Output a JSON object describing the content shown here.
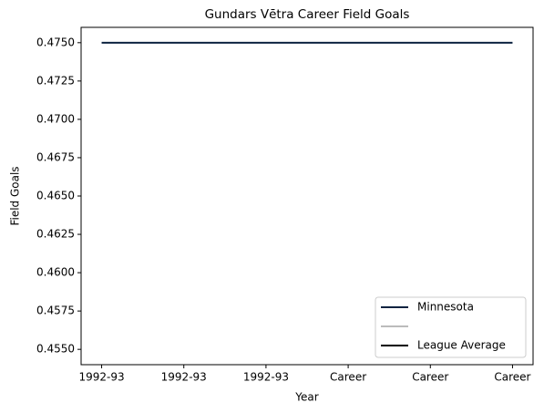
{
  "chart_data": {
    "type": "line",
    "title": "Gundars Vētra Career Field Goals",
    "x_label": "Year",
    "y_label": "Field Goals",
    "categories": [
      "1992-93",
      "1992-93",
      "1992-93",
      "Career",
      "Career",
      "Career"
    ],
    "series": [
      {
        "name": "Minnesota",
        "color": "#0c2340",
        "values": [
          0.475,
          0.475,
          0.475,
          0.475,
          0.475,
          0.475
        ]
      },
      {
        "color": "#bbbbbb",
        "values": [
          null,
          null,
          null,
          null,
          null,
          null
        ]
      },
      {
        "name": "League Average",
        "color": "#000000",
        "values": [
          null,
          null,
          null,
          null,
          null,
          null
        ]
      }
    ],
    "ylim": [
      0.454,
      0.476
    ],
    "yticks": [
      {
        "value": 0.455,
        "label": "0.4550"
      },
      0.4575,
      {
        "value": 0.46,
        "label": "0.4600"
      },
      0.4625,
      {
        "value": 0.465,
        "label": "0.4650"
      },
      0.4675,
      {
        "value": 0.47,
        "label": "0.4700"
      },
      0.4725,
      {
        "value": 0.475,
        "label": "0.4750"
      }
    ],
    "legend": "lower right",
    "grid": false
  }
}
